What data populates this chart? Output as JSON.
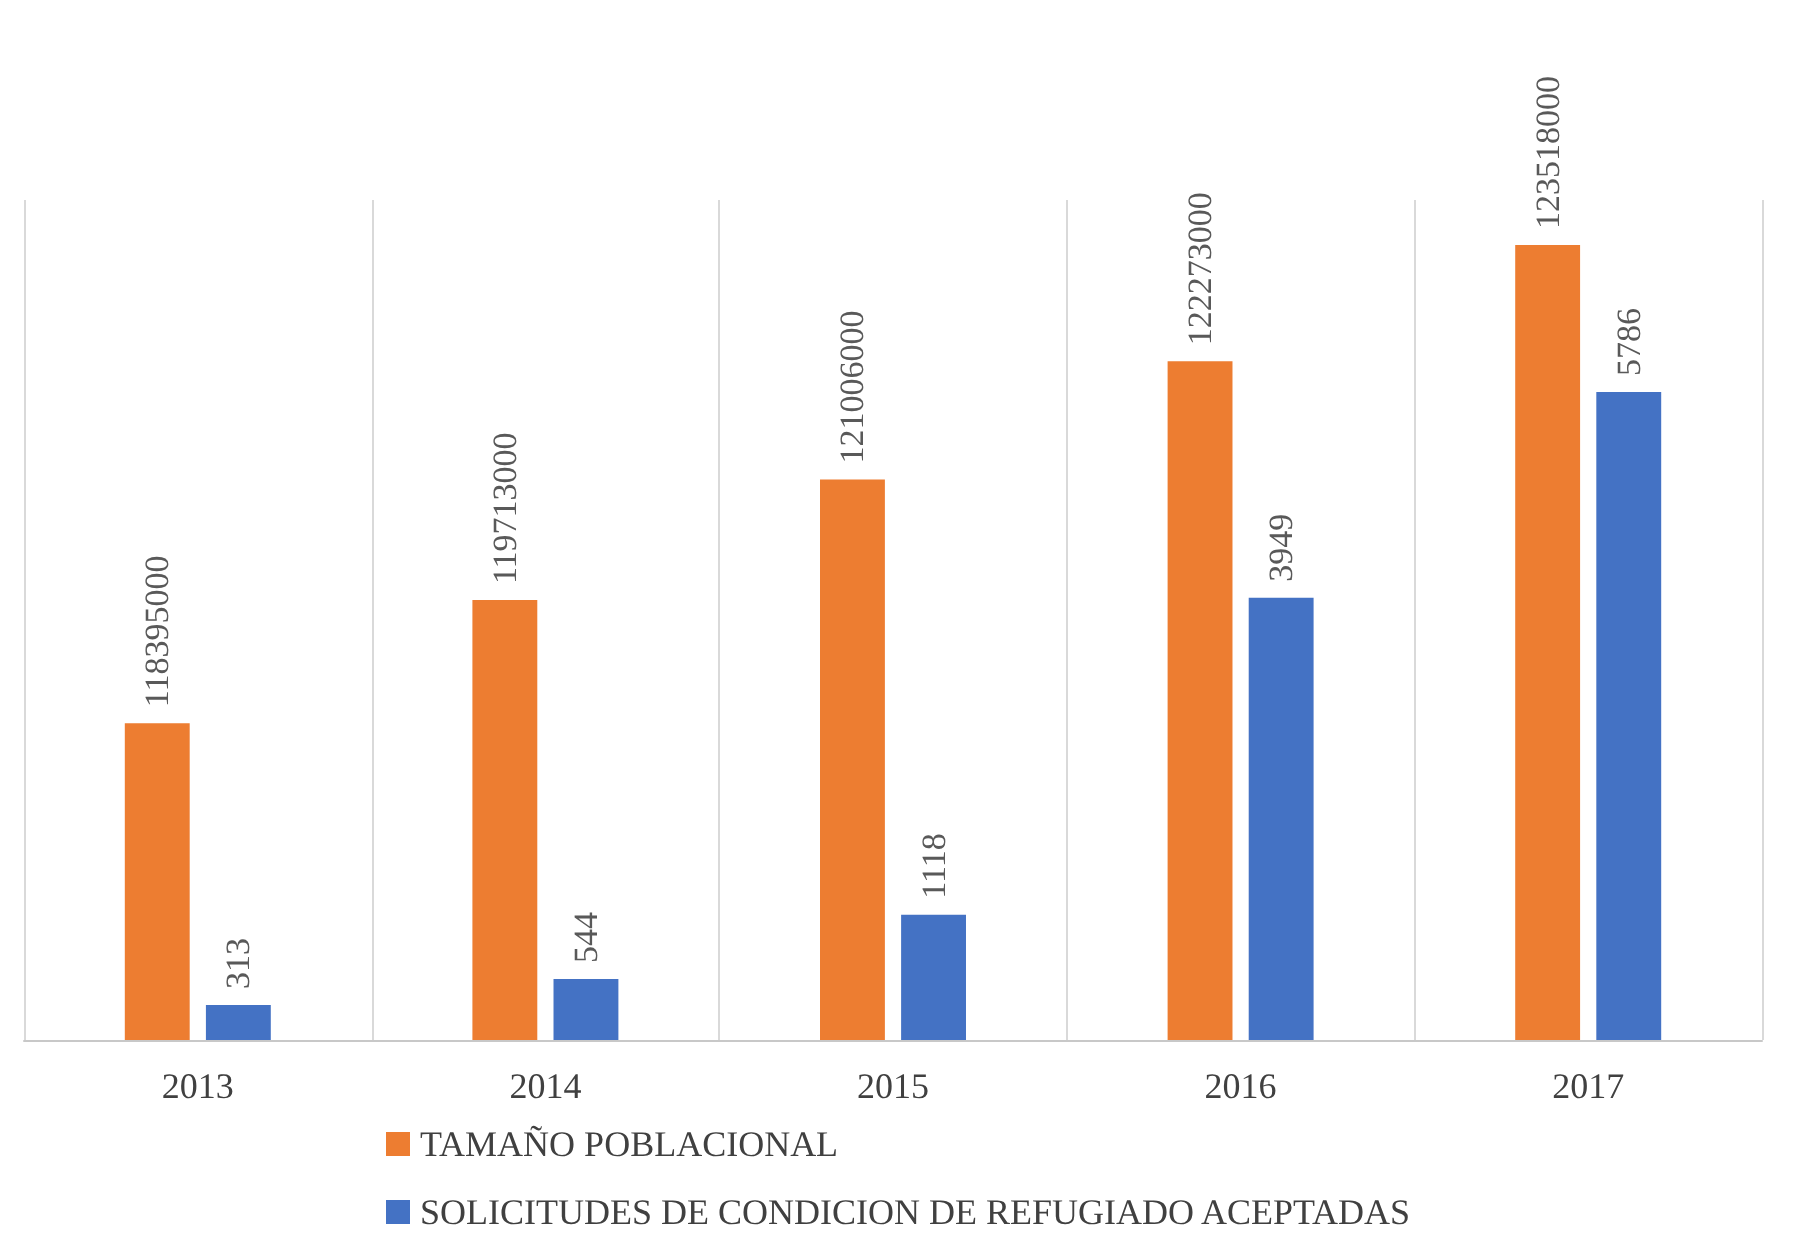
{
  "chart_data": {
    "type": "bar",
    "categories": [
      "2013",
      "2014",
      "2015",
      "2016",
      "2017"
    ],
    "series": [
      {
        "name": "TAMAÑO POBLACIONAL",
        "color": "#ed7d31",
        "values": [
          118395000,
          119713000,
          121006000,
          122273000,
          123518000
        ]
      },
      {
        "name": "SOLICITUDES DE CONDICION DE REFUGIADO ACEPTADAS",
        "color": "#4472c4",
        "axis": "y2",
        "values": [
          313,
          544,
          1118,
          3949,
          5786
        ]
      }
    ],
    "ylim": [
      115000000,
      124000000
    ],
    "y2lim": [
      0,
      7500
    ],
    "tick_labels": "x",
    "grid": "x",
    "legend": "bottom",
    "data_labels": true
  }
}
